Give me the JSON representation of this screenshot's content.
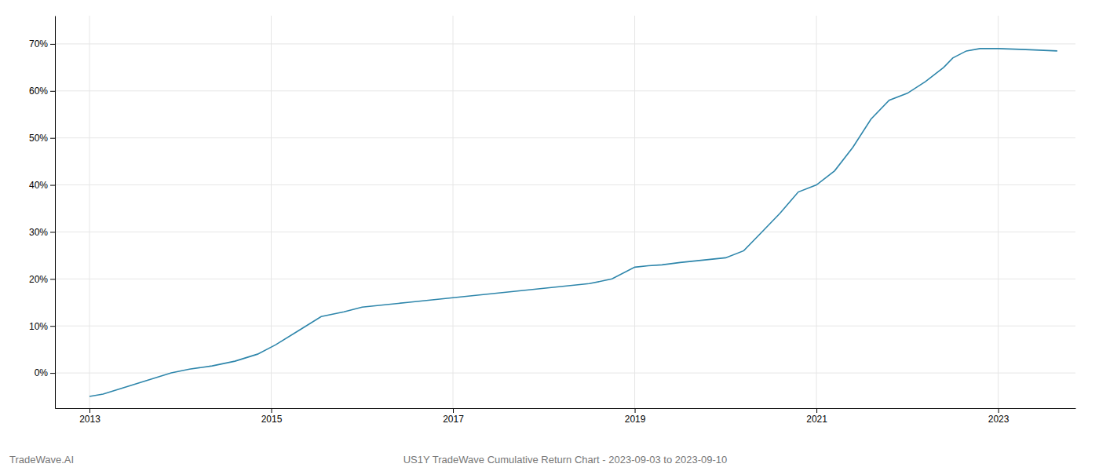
{
  "chart_data": {
    "type": "line",
    "title": "US1Y TradeWave Cumulative Return Chart - 2023-09-03 to 2023-09-10",
    "annotations": [
      "TradeWave.AI"
    ],
    "x": [
      2013.0,
      2013.15,
      2013.4,
      2013.65,
      2013.9,
      2014.1,
      2014.35,
      2014.6,
      2014.85,
      2015.05,
      2015.3,
      2015.55,
      2015.8,
      2016.0,
      2016.25,
      2016.5,
      2016.75,
      2017.0,
      2017.25,
      2017.5,
      2017.75,
      2018.0,
      2018.25,
      2018.5,
      2018.75,
      2019.0,
      2019.15,
      2019.3,
      2019.5,
      2019.75,
      2020.0,
      2020.2,
      2020.4,
      2020.6,
      2020.8,
      2021.0,
      2021.2,
      2021.4,
      2021.6,
      2021.8,
      2022.0,
      2022.2,
      2022.4,
      2022.5,
      2022.65,
      2022.8,
      2023.0,
      2023.3,
      2023.65
    ],
    "values": [
      -5.0,
      -4.5,
      -3.0,
      -1.5,
      0.0,
      0.8,
      1.5,
      2.5,
      4.0,
      6.0,
      9.0,
      12.0,
      13.0,
      14.0,
      14.5,
      15.0,
      15.5,
      16.0,
      16.5,
      17.0,
      17.5,
      18.0,
      18.5,
      19.0,
      20.0,
      22.5,
      22.8,
      23.0,
      23.5,
      24.0,
      24.5,
      26.0,
      30.0,
      34.0,
      38.5,
      40.0,
      43.0,
      48.0,
      54.0,
      58.0,
      59.5,
      62.0,
      65.0,
      67.0,
      68.5,
      69.0,
      69.0,
      68.8,
      68.5
    ],
    "color": "#2e86ab",
    "xlim": [
      2012.62,
      2023.85
    ],
    "xticks": [
      2013,
      2015,
      2017,
      2019,
      2021,
      2023
    ],
    "ylim": [
      -7.5,
      76
    ],
    "yticks": [
      {
        "value": 0,
        "label": "0%"
      },
      {
        "value": 10,
        "label": "10%"
      },
      {
        "value": 20,
        "label": "20%"
      },
      {
        "value": 30,
        "label": "30%"
      },
      {
        "value": 40,
        "label": "40%"
      },
      {
        "value": 50,
        "label": "50%"
      },
      {
        "value": 60,
        "label": "60%"
      },
      {
        "value": 70,
        "label": "70%"
      }
    ],
    "grid": true
  }
}
